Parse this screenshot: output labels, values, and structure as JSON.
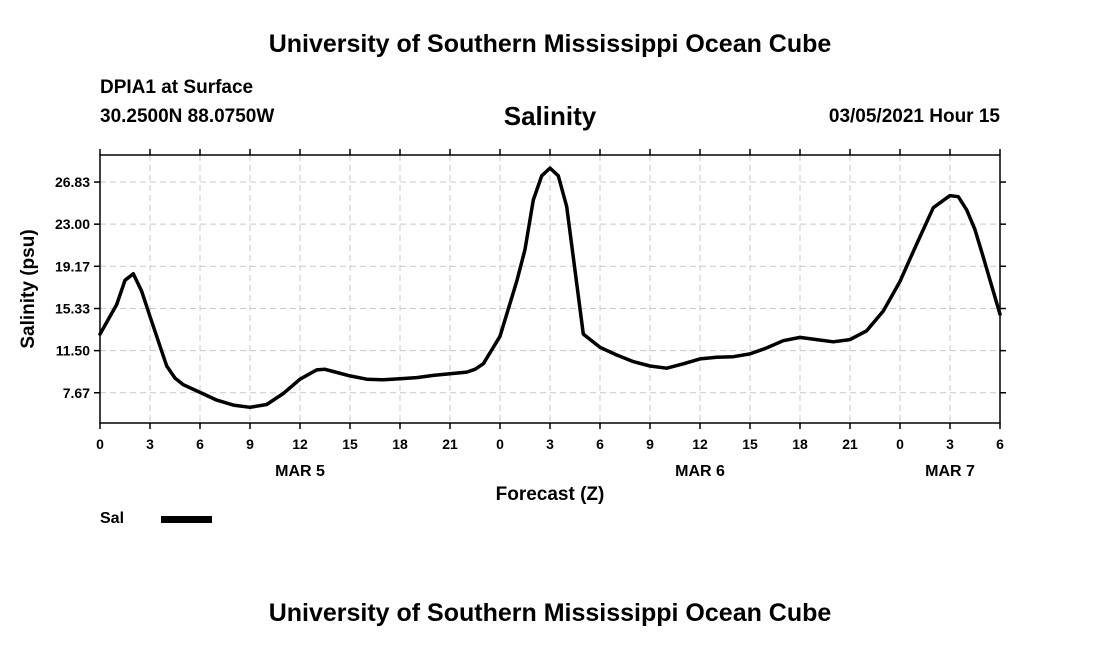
{
  "header": {
    "top_title": "University of Southern Mississippi Ocean Cube",
    "bottom_title": "University of Southern Mississippi Ocean Cube",
    "station": "DPIA1 at Surface",
    "coords": "30.2500N 88.0750W",
    "chart_title": "Salinity",
    "date_hour": "03/05/2021 Hour 15"
  },
  "chart_data": {
    "type": "line",
    "title": "Salinity",
    "xlabel": "Forecast (Z)",
    "ylabel": "Salinity (psu)",
    "xlim": [
      0,
      54
    ],
    "ylim": [
      4.92,
      29.29
    ],
    "x_tick_values": [
      0,
      3,
      6,
      9,
      12,
      15,
      18,
      21,
      24,
      27,
      30,
      33,
      36,
      39,
      42,
      45,
      48,
      51,
      54
    ],
    "x_tick_labels": [
      "0",
      "3",
      "6",
      "9",
      "12",
      "15",
      "18",
      "21",
      "0",
      "3",
      "6",
      "9",
      "12",
      "15",
      "18",
      "21",
      "0",
      "3",
      "6"
    ],
    "y_ticks": [
      7.67,
      11.5,
      15.33,
      19.17,
      23.0,
      26.83
    ],
    "y_tick_labels": [
      "7.67",
      "11.50",
      "15.33",
      "19.17",
      "23.00",
      "26.83"
    ],
    "day_labels": [
      {
        "x": 12,
        "label": "MAR 5"
      },
      {
        "x": 36,
        "label": "MAR 6"
      },
      {
        "x": 51,
        "label": "MAR 7"
      }
    ],
    "grid": true,
    "legend": "bottom-left",
    "series": [
      {
        "name": "Sal",
        "color": "#000000",
        "x": [
          0,
          1,
          1.5,
          2,
          2.5,
          3,
          4,
          4.5,
          5,
          6,
          7,
          8,
          9,
          10,
          11,
          12,
          13,
          13.5,
          14,
          15,
          16,
          17,
          18,
          19,
          20,
          21,
          22,
          22.5,
          23,
          24,
          25,
          25.5,
          26,
          26.5,
          27,
          27.5,
          28,
          29,
          30,
          31,
          32,
          33,
          34,
          35,
          36,
          37,
          38,
          39,
          40,
          41,
          42,
          43,
          44,
          45,
          46,
          47,
          48,
          48.5,
          49,
          50,
          51,
          51.5,
          52,
          52.5,
          53,
          54
        ],
        "y": [
          13.0,
          15.7,
          17.9,
          18.5,
          16.9,
          14.6,
          10.1,
          9.0,
          8.4,
          7.7,
          7.0,
          6.55,
          6.35,
          6.6,
          7.6,
          8.9,
          9.75,
          9.8,
          9.6,
          9.2,
          8.9,
          8.85,
          8.95,
          9.05,
          9.25,
          9.4,
          9.55,
          9.8,
          10.3,
          12.8,
          17.8,
          20.7,
          25.2,
          27.4,
          28.1,
          27.4,
          24.6,
          13.0,
          11.8,
          11.1,
          10.5,
          10.1,
          9.9,
          10.3,
          10.75,
          10.9,
          10.95,
          11.2,
          11.75,
          12.4,
          12.7,
          12.5,
          12.3,
          12.5,
          13.3,
          15.1,
          17.8,
          19.5,
          21.2,
          24.5,
          25.6,
          25.5,
          24.3,
          22.5,
          20.0,
          14.8
        ]
      }
    ]
  },
  "legend": {
    "label": "Sal"
  }
}
